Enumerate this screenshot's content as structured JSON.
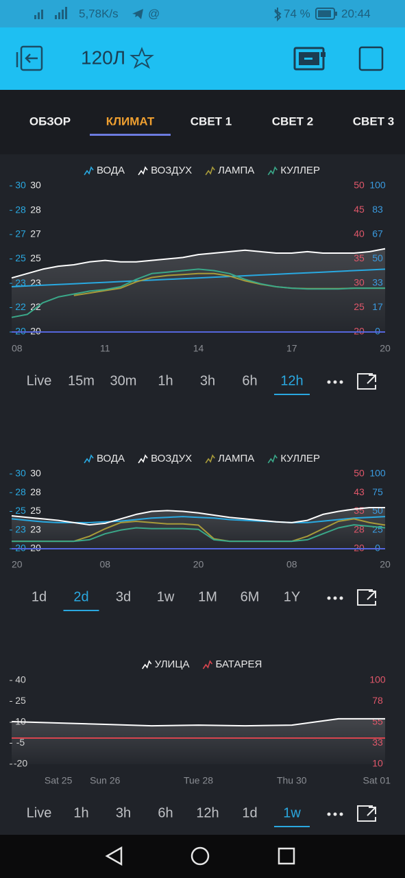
{
  "status_bar": {
    "speed": "5,78K/s",
    "battery": "74 %",
    "time": "20:44"
  },
  "header": {
    "title": "120Л"
  },
  "tabs": {
    "items": [
      "ОБЗОР",
      "КЛИМАТ",
      "СВЕТ 1",
      "СВЕТ 2",
      "СВЕТ 3"
    ],
    "selected": 1
  },
  "chart_data": [
    {
      "type": "line",
      "x": [
        8,
        8.5,
        9,
        9.5,
        10,
        10.5,
        11,
        11.5,
        12,
        12.5,
        13,
        13.5,
        14,
        14.5,
        15,
        15.5,
        16,
        16.5,
        17,
        17.5,
        18,
        18.5,
        19,
        19.5,
        20
      ],
      "xlim": [
        8,
        20
      ],
      "xticks": [
        {
          "value": 8,
          "label": "08"
        },
        11,
        14,
        17,
        20
      ],
      "axes": [
        {
          "side": "left",
          "label_color": "#2aa8e0",
          "ylim": [
            20,
            30
          ],
          "yticks": [
            20,
            {
              "value": 21.67,
              "label": "22"
            },
            {
              "value": 23.33,
              "label": "23"
            },
            25,
            {
              "value": 26.67,
              "label": "27"
            },
            {
              "value": 28.33,
              "label": "28"
            },
            30
          ]
        },
        {
          "side": "left",
          "label_color": "#e8e8e8",
          "ylim": [
            20,
            30
          ],
          "yticks": [
            20,
            {
              "value": 21.67,
              "label": "22"
            },
            {
              "value": 23.33,
              "label": "23"
            },
            25,
            {
              "value": 26.67,
              "label": "27"
            },
            {
              "value": 28.33,
              "label": "28"
            },
            30
          ]
        },
        {
          "side": "right",
          "label_color": "#e0576a",
          "ylim": [
            20,
            50
          ],
          "yticks": [
            20,
            25,
            30,
            35,
            40,
            45,
            50
          ]
        },
        {
          "side": "right",
          "label_color": "#3a9be0",
          "ylim": [
            0,
            100
          ],
          "yticks": [
            0,
            {
              "value": 16.67,
              "label": "17"
            },
            {
              "value": 33.33,
              "label": "33"
            },
            50,
            {
              "value": 66.67,
              "label": "67"
            },
            {
              "value": 83.33,
              "label": "83"
            },
            100
          ]
        }
      ],
      "series": [
        {
          "name": "ВОДА",
          "color": "#29a9e1",
          "axis": 0,
          "values": [
            23.1,
            23.15,
            23.2,
            23.25,
            23.3,
            23.35,
            23.4,
            23.45,
            23.5,
            23.55,
            23.6,
            23.65,
            23.7,
            23.75,
            23.8,
            23.85,
            23.9,
            23.95,
            24.0,
            24.05,
            24.1,
            24.15,
            24.2,
            24.25,
            24.3
          ]
        },
        {
          "name": "ВОЗДУХ",
          "color": "#ffffff",
          "axis": 1,
          "area": true,
          "values": [
            23.7,
            24.0,
            24.3,
            24.5,
            24.6,
            24.8,
            24.9,
            24.8,
            24.8,
            24.9,
            25.0,
            25.1,
            25.3,
            25.4,
            25.5,
            25.6,
            25.5,
            25.4,
            25.4,
            25.5,
            25.4,
            25.4,
            25.4,
            25.5,
            25.7
          ]
        },
        {
          "name": "ЛАМПА",
          "color": "#a89b3a",
          "axis": 2,
          "values": [
            null,
            null,
            null,
            null,
            27.5,
            28.0,
            28.5,
            29.0,
            30.3,
            31.2,
            31.6,
            31.8,
            32.0,
            32.0,
            31.5,
            30.5,
            29.8,
            29.3,
            29.0,
            28.9,
            28.9,
            28.9,
            29.0,
            29.0,
            29.0
          ]
        },
        {
          "name": "КУЛЛЕР",
          "color": "#3aa889",
          "axis": 3,
          "values": [
            10,
            12,
            20,
            24,
            26,
            28,
            29,
            31,
            36,
            40,
            41,
            42,
            43,
            42,
            40,
            36,
            33,
            31,
            30,
            29.5,
            29.5,
            29.5,
            30,
            30,
            30
          ]
        }
      ],
      "baseline": true,
      "time_ranges": {
        "options": [
          "Live",
          "15m",
          "30m",
          "1h",
          "3h",
          "6h",
          "12h"
        ],
        "selected": 6
      }
    },
    {
      "type": "line",
      "x": [
        0,
        2,
        4,
        6,
        8,
        10,
        12,
        14,
        16,
        18,
        20,
        22,
        24,
        26,
        28,
        30,
        32,
        34,
        36,
        38,
        40,
        42,
        44,
        46,
        48
      ],
      "xlim": [
        0,
        48
      ],
      "xticks": [
        {
          "value": 0,
          "label": "20"
        },
        {
          "value": 12,
          "label": "08"
        },
        {
          "value": 24,
          "label": "20"
        },
        {
          "value": 36,
          "label": "08"
        },
        {
          "value": 48,
          "label": "20"
        }
      ],
      "axes": [
        {
          "side": "left",
          "label_color": "#2aa8e0",
          "ylim": [
            20,
            30
          ],
          "yticks": [
            20,
            {
              "value": 22.5,
              "label": "23"
            },
            25,
            {
              "value": 27.5,
              "label": "28"
            },
            30
          ]
        },
        {
          "side": "left",
          "label_color": "#e8e8e8",
          "ylim": [
            20,
            30
          ],
          "yticks": [
            20,
            {
              "value": 22.5,
              "label": "23"
            },
            25,
            {
              "value": 27.5,
              "label": "28"
            },
            30
          ]
        },
        {
          "side": "right",
          "label_color": "#e0576a",
          "ylim": [
            20,
            50
          ],
          "yticks": [
            20,
            {
              "value": 27.5,
              "label": "28"
            },
            35,
            {
              "value": 42.5,
              "label": "43"
            },
            50
          ]
        },
        {
          "side": "right",
          "label_color": "#3a9be0",
          "ylim": [
            0,
            100
          ],
          "yticks": [
            0,
            25,
            50,
            75,
            100
          ]
        }
      ],
      "series": [
        {
          "name": "ВОДА",
          "color": "#29a9e1",
          "axis": 0,
          "values": [
            24.0,
            23.8,
            23.6,
            23.5,
            23.5,
            23.5,
            23.6,
            23.7,
            23.9,
            24.1,
            24.2,
            24.3,
            24.2,
            24.1,
            23.9,
            23.8,
            23.7,
            23.6,
            23.5,
            23.5,
            23.7,
            23.9,
            24.1,
            24.2,
            24.3
          ]
        },
        {
          "name": "ВОЗДУХ",
          "color": "#ffffff",
          "axis": 1,
          "area": true,
          "values": [
            24.4,
            24.2,
            24.0,
            23.8,
            23.5,
            23.2,
            23.4,
            24.0,
            24.6,
            25.0,
            25.1,
            25.0,
            24.8,
            24.5,
            24.2,
            24.0,
            23.8,
            23.6,
            23.5,
            23.8,
            24.6,
            25.0,
            25.3,
            25.5,
            25.5
          ]
        },
        {
          "name": "ЛАМПА",
          "color": "#a89b3a",
          "axis": 2,
          "values": [
            23,
            23,
            23,
            23,
            23,
            25,
            28,
            30.5,
            31,
            30.5,
            30,
            30,
            29.5,
            24,
            23,
            23,
            23,
            23,
            23,
            25,
            28,
            31,
            32,
            30.5,
            29.5
          ]
        },
        {
          "name": "КУЛЛЕР",
          "color": "#3aa889",
          "axis": 3,
          "values": [
            10,
            10,
            10,
            10,
            10,
            12,
            20,
            25,
            28,
            27,
            27,
            27,
            26,
            12,
            10,
            10,
            10,
            10,
            10,
            12,
            20,
            28,
            32,
            30,
            28
          ]
        }
      ],
      "baseline": true,
      "time_ranges": {
        "options": [
          "1d",
          "2d",
          "3d",
          "1w",
          "1M",
          "6M",
          "1Y"
        ],
        "selected": 1
      }
    },
    {
      "type": "line",
      "x": [
        -1,
        0,
        1,
        2,
        3,
        4,
        5,
        6,
        7
      ],
      "xlim": [
        -1,
        7
      ],
      "xticks": [
        {
          "value": 0,
          "label": "Sat 25"
        },
        {
          "value": 1,
          "label": "Sun 26"
        },
        {
          "value": 3,
          "label": "Tue 28"
        },
        {
          "value": 5,
          "label": "Thu 30"
        },
        {
          "value": 7,
          "label": "Sat 01"
        }
      ],
      "axes": [
        {
          "side": "left",
          "label_color": "#d0d0d0",
          "ylim": [
            -20,
            40
          ],
          "yticks": [
            -20,
            -5,
            10,
            25,
            40
          ]
        },
        {
          "side": "right",
          "label_color": "#e0576a",
          "ylim": [
            10,
            100
          ],
          "yticks": [
            10,
            {
              "value": 32.5,
              "label": "33"
            },
            55,
            {
              "value": 77.5,
              "label": "78"
            },
            100
          ]
        }
      ],
      "series": [
        {
          "name": "УЛИЦА",
          "color": "#ffffff",
          "axis": 0,
          "area": true,
          "values": [
            10.5,
            9.5,
            8.5,
            7.5,
            8,
            7.5,
            8,
            12.5,
            12.5
          ]
        },
        {
          "name": "БАТАРЕЯ",
          "color": "#d9454f",
          "axis": 1,
          "values": [
            38,
            38,
            38,
            38,
            38,
            38,
            38,
            38,
            38
          ]
        }
      ],
      "baseline": false,
      "time_ranges": {
        "options": [
          "Live",
          "1h",
          "3h",
          "6h",
          "12h",
          "1d",
          "1w"
        ],
        "selected": 6
      }
    }
  ]
}
